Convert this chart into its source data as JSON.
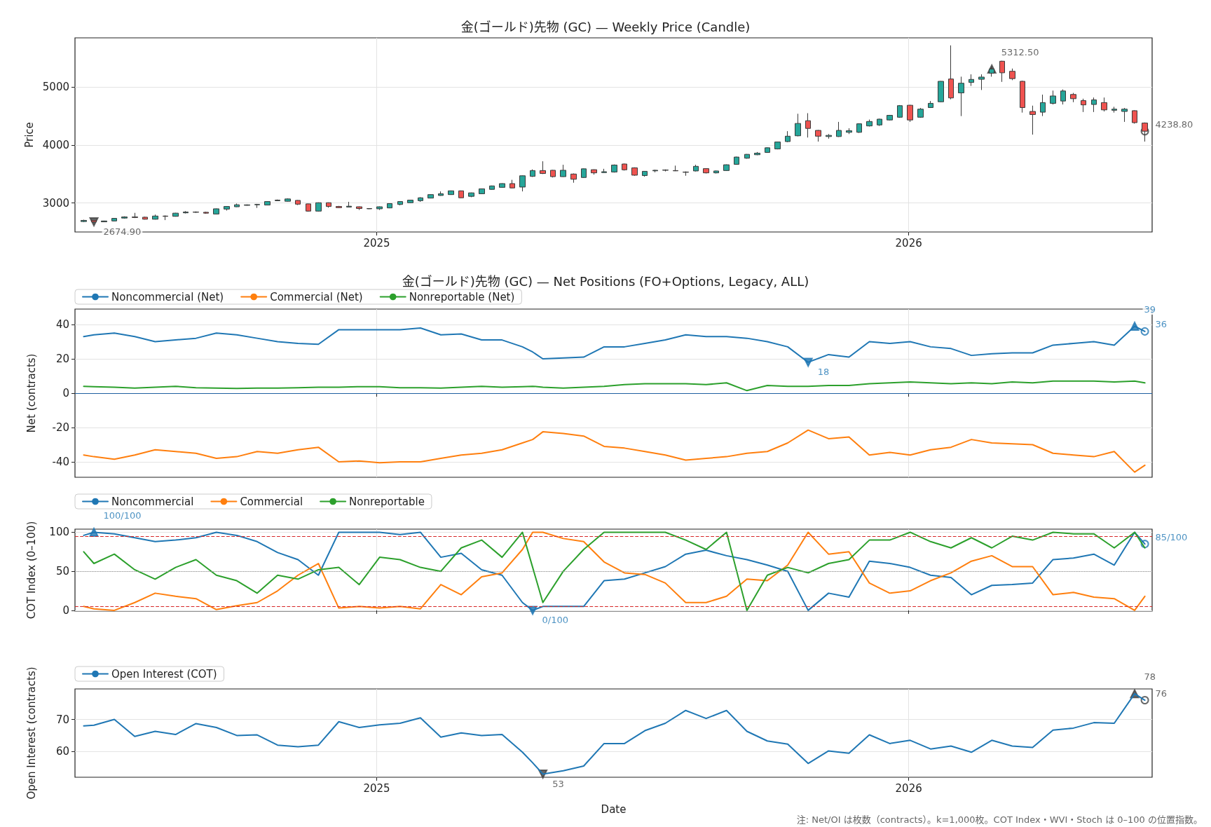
{
  "chart_data": [
    {
      "type": "candlestick",
      "title": "金(ゴールド)先物 (GC) — Weekly Price (Candle)",
      "ylabel": "Price",
      "x": [
        "2024-06-14",
        "2024-06-21",
        "2024-06-28",
        "2024-07-05",
        "2024-07-12",
        "2024-07-19",
        "2024-07-26",
        "2024-08-02",
        "2024-08-09",
        "2024-08-16",
        "2024-08-23",
        "2024-08-30",
        "2024-09-06",
        "2024-09-13",
        "2024-09-20",
        "2024-09-27",
        "2024-10-04",
        "2024-10-11",
        "2024-10-18",
        "2024-10-25",
        "2024-11-01",
        "2024-11-08",
        "2024-11-15",
        "2024-11-22",
        "2024-11-29",
        "2024-12-06",
        "2024-12-13",
        "2024-12-20",
        "2024-12-27",
        "2025-01-03",
        "2025-01-10",
        "2025-01-17",
        "2025-01-24",
        "2025-01-31",
        "2025-02-07",
        "2025-02-14",
        "2025-02-21",
        "2025-02-28",
        "2025-03-07",
        "2025-03-14",
        "2025-03-21",
        "2025-03-28",
        "2025-04-04",
        "2025-04-11",
        "2025-04-18",
        "2025-04-25",
        "2025-05-02",
        "2025-05-09",
        "2025-05-16",
        "2025-05-23",
        "2025-05-30",
        "2025-06-06",
        "2025-06-13",
        "2025-06-20",
        "2025-06-27",
        "2025-07-04",
        "2025-07-11",
        "2025-07-18",
        "2025-07-25",
        "2025-08-01",
        "2025-08-08",
        "2025-08-15",
        "2025-08-22",
        "2025-08-29",
        "2025-09-05",
        "2025-09-12",
        "2025-09-19",
        "2025-09-26",
        "2025-10-03",
        "2025-10-10",
        "2025-10-17",
        "2025-10-24",
        "2025-10-31",
        "2025-11-07",
        "2025-11-14",
        "2025-11-21",
        "2025-11-28",
        "2025-12-05",
        "2025-12-12",
        "2025-12-19",
        "2025-12-26",
        "2026-01-02",
        "2026-01-09",
        "2026-01-16",
        "2026-01-23",
        "2026-01-30",
        "2026-02-06",
        "2026-02-13",
        "2026-02-20",
        "2026-02-27",
        "2026-03-06",
        "2026-03-13",
        "2026-03-20",
        "2026-03-27",
        "2026-04-03",
        "2026-04-10",
        "2026-04-17",
        "2026-04-24",
        "2026-05-01",
        "2026-05-08",
        "2026-05-15",
        "2026-05-22",
        "2026-05-29",
        "2026-06-05",
        "2026-06-12"
      ],
      "ohlc": [
        [
          2680,
          2712,
          2670,
          2700
        ],
        [
          2700,
          2705,
          2665,
          2674.9
        ],
        [
          2675,
          2695,
          2670,
          2690
        ],
        [
          2690,
          2740,
          2685,
          2735
        ],
        [
          2740,
          2770,
          2730,
          2760
        ],
        [
          2760,
          2830,
          2740,
          2750
        ],
        [
          2755,
          2765,
          2715,
          2720
        ],
        [
          2720,
          2800,
          2715,
          2775
        ],
        [
          2775,
          2785,
          2705,
          2770
        ],
        [
          2770,
          2830,
          2765,
          2825
        ],
        [
          2830,
          2860,
          2820,
          2845
        ],
        [
          2845,
          2855,
          2830,
          2840
        ],
        [
          2840,
          2850,
          2815,
          2825
        ],
        [
          2810,
          2905,
          2805,
          2900
        ],
        [
          2895,
          2945,
          2870,
          2940
        ],
        [
          2935,
          2990,
          2930,
          2970
        ],
        [
          2960,
          2975,
          2955,
          2968
        ],
        [
          2970,
          2985,
          2915,
          2975
        ],
        [
          2965,
          3030,
          2960,
          3025
        ],
        [
          3040,
          3060,
          3035,
          3050
        ],
        [
          3030,
          3080,
          3025,
          3070
        ],
        [
          3045,
          3050,
          2965,
          2980
        ],
        [
          2985,
          2990,
          2850,
          2860
        ],
        [
          2860,
          3010,
          2855,
          3005
        ],
        [
          3005,
          3010,
          2920,
          2940
        ],
        [
          2940,
          2950,
          2915,
          2920
        ],
        [
          2930,
          3020,
          2925,
          2945
        ],
        [
          2935,
          2940,
          2880,
          2905
        ],
        [
          2905,
          2910,
          2895,
          2900
        ],
        [
          2900,
          2940,
          2880,
          2935
        ],
        [
          2915,
          2995,
          2910,
          2990
        ],
        [
          2975,
          3030,
          2960,
          3025
        ],
        [
          3005,
          3055,
          3000,
          3050
        ],
        [
          3040,
          3100,
          3020,
          3090
        ],
        [
          3085,
          3150,
          3080,
          3145
        ],
        [
          3130,
          3200,
          3125,
          3160
        ],
        [
          3145,
          3215,
          3140,
          3210
        ],
        [
          3210,
          3215,
          3085,
          3090
        ],
        [
          3115,
          3180,
          3100,
          3175
        ],
        [
          3160,
          3250,
          3155,
          3245
        ],
        [
          3235,
          3300,
          3230,
          3295
        ],
        [
          3270,
          3340,
          3265,
          3335
        ],
        [
          3335,
          3400,
          3255,
          3260
        ],
        [
          3275,
          3475,
          3200,
          3470
        ],
        [
          3460,
          3580,
          3450,
          3560
        ],
        [
          3560,
          3720,
          3500,
          3510
        ],
        [
          3565,
          3570,
          3440,
          3455
        ],
        [
          3455,
          3660,
          3450,
          3565
        ],
        [
          3500,
          3510,
          3350,
          3410
        ],
        [
          3440,
          3595,
          3435,
          3590
        ],
        [
          3575,
          3580,
          3490,
          3520
        ],
        [
          3525,
          3590,
          3520,
          3540
        ],
        [
          3535,
          3665,
          3525,
          3655
        ],
        [
          3673,
          3680,
          3560,
          3573
        ],
        [
          3607,
          3615,
          3470,
          3480
        ],
        [
          3473,
          3550,
          3455,
          3547
        ],
        [
          3555,
          3575,
          3530,
          3565
        ],
        [
          3565,
          3580,
          3545,
          3570
        ],
        [
          3560,
          3645,
          3550,
          3555
        ],
        [
          3535,
          3545,
          3470,
          3530
        ],
        [
          3553,
          3660,
          3545,
          3633
        ],
        [
          3593,
          3600,
          3510,
          3520
        ],
        [
          3520,
          3560,
          3510,
          3553
        ],
        [
          3560,
          3665,
          3555,
          3660
        ],
        [
          3667,
          3800,
          3660,
          3793
        ],
        [
          3773,
          3845,
          3765,
          3840
        ],
        [
          3833,
          3880,
          3825,
          3860
        ],
        [
          3873,
          3960,
          3865,
          3953
        ],
        [
          3933,
          4060,
          3925,
          4053
        ],
        [
          4060,
          4240,
          4050,
          4153
        ],
        [
          4160,
          4540,
          4150,
          4373
        ],
        [
          4420,
          4550,
          4130,
          4287
        ],
        [
          4253,
          4260,
          4060,
          4153
        ],
        [
          4147,
          4190,
          4110,
          4167
        ],
        [
          4147,
          4400,
          4140,
          4253
        ],
        [
          4220,
          4290,
          4190,
          4247
        ],
        [
          4220,
          4375,
          4210,
          4367
        ],
        [
          4330,
          4440,
          4320,
          4407
        ],
        [
          4347,
          4455,
          4330,
          4447
        ],
        [
          4433,
          4520,
          4425,
          4513
        ],
        [
          4480,
          4690,
          4470,
          4680
        ],
        [
          4687,
          4695,
          4400,
          4433
        ],
        [
          4480,
          4640,
          4470,
          4620
        ],
        [
          4647,
          4760,
          4640,
          4720
        ],
        [
          4747,
          5105,
          4740,
          5100
        ],
        [
          5140,
          5720,
          4790,
          4813
        ],
        [
          4900,
          5180,
          4500,
          5067
        ],
        [
          5080,
          5220,
          5020,
          5133
        ],
        [
          5135,
          5220,
          4950,
          5173
        ],
        [
          5240,
          5345,
          5180,
          5312.5
        ],
        [
          5447,
          5455,
          5090,
          5247
        ],
        [
          5273,
          5320,
          5120,
          5147
        ],
        [
          5100,
          5110,
          4560,
          4647
        ],
        [
          4580,
          4680,
          4180,
          4527
        ],
        [
          4567,
          4870,
          4500,
          4733
        ],
        [
          4720,
          4940,
          4700,
          4847
        ],
        [
          4760,
          4960,
          4700,
          4933
        ],
        [
          4873,
          4900,
          4740,
          4800
        ],
        [
          4767,
          4800,
          4570,
          4693
        ],
        [
          4700,
          4820,
          4570,
          4780
        ],
        [
          4733,
          4820,
          4580,
          4607
        ],
        [
          4600,
          4660,
          4560,
          4620
        ],
        [
          4580,
          4640,
          4400,
          4620
        ],
        [
          4593,
          4600,
          4370,
          4387
        ],
        [
          4380,
          4390,
          4060,
          4238.8
        ]
      ],
      "xlim": [
        "2024-06-08",
        "2026-06-17"
      ],
      "ylim": [
        2500,
        5850
      ],
      "xticks": [
        {
          "value": "2025-01-01",
          "label": "2025"
        },
        {
          "value": "2026-01-01",
          "label": "2026"
        }
      ],
      "yticks": [
        3000,
        4000,
        5000
      ],
      "grid": true,
      "annotations": [
        {
          "text": "2674.90",
          "x": "2024-06-21",
          "y": 2674.9
        },
        {
          "text": "5312.50",
          "x": "2026-02-27",
          "y": 5312.5
        },
        {
          "text": "4238.80",
          "x": "2026-06-12",
          "y": 4238.8
        }
      ]
    },
    {
      "type": "line",
      "title": "金(ゴールド)先物 (GC) — Net Positions (FO+Options, Legacy, ALL)",
      "ylabel": "Net (contracts)",
      "x": [
        "2024-06-14",
        "2024-06-21",
        "2024-07-05",
        "2024-07-19",
        "2024-08-02",
        "2024-08-16",
        "2024-08-30",
        "2024-09-13",
        "2024-09-27",
        "2024-10-11",
        "2024-10-25",
        "2024-11-08",
        "2024-11-22",
        "2024-12-06",
        "2024-12-20",
        "2025-01-03",
        "2025-01-17",
        "2025-01-31",
        "2025-02-14",
        "2025-02-28",
        "2025-03-14",
        "2025-03-28",
        "2025-04-11",
        "2025-04-18",
        "2025-04-25",
        "2025-05-09",
        "2025-05-23",
        "2025-06-06",
        "2025-06-20",
        "2025-07-04",
        "2025-07-18",
        "2025-08-01",
        "2025-08-15",
        "2025-08-29",
        "2025-09-12",
        "2025-09-26",
        "2025-10-10",
        "2025-10-24",
        "2025-11-07",
        "2025-11-21",
        "2025-12-05",
        "2025-12-19",
        "2026-01-02",
        "2026-01-16",
        "2026-01-30",
        "2026-02-13",
        "2026-02-27",
        "2026-03-13",
        "2026-03-27",
        "2026-04-10",
        "2026-04-24",
        "2026-05-08",
        "2026-05-22",
        "2026-06-05",
        "2026-06-12"
      ],
      "series": [
        {
          "name": "Noncommercial (Net)",
          "color": "#1f77b4",
          "values": [
            33,
            34,
            35,
            33,
            30,
            31,
            32,
            35,
            34,
            32,
            30,
            29,
            28.5,
            37,
            37,
            37,
            37,
            38,
            34,
            34.5,
            31,
            31,
            27,
            24,
            20,
            20.5,
            21,
            27,
            27,
            29,
            31,
            34,
            33,
            33,
            32,
            30,
            27,
            18,
            22.5,
            21,
            30,
            29,
            30,
            27,
            26,
            22,
            23,
            23.5,
            23.5,
            28,
            29,
            30,
            28,
            39,
            36
          ]
        },
        {
          "name": "Commercial (Net)",
          "color": "#ff7f0e",
          "values": [
            -36,
            -37,
            -38.5,
            -36,
            -33,
            -34,
            -35,
            -38,
            -37,
            -34,
            -35,
            -33,
            -31.5,
            -40,
            -39.5,
            -40.5,
            -40,
            -40,
            -38,
            -36,
            -35,
            -33,
            -29,
            -27,
            -22.5,
            -23.5,
            -25,
            -31,
            -32,
            -34,
            -36,
            -39,
            -38,
            -37,
            -35,
            -34,
            -29,
            -21.5,
            -26.5,
            -25.5,
            -36,
            -34.5,
            -36,
            -33,
            -31.5,
            -27,
            -29,
            -29.5,
            -30,
            -35,
            -36,
            -37,
            -34,
            -46,
            -42
          ]
        },
        {
          "name": "Nonreportable (Net)",
          "color": "#2ca02c",
          "values": [
            4,
            3.8,
            3.5,
            3,
            3.5,
            4,
            3.2,
            3,
            2.8,
            3,
            3,
            3.2,
            3.5,
            3.5,
            3.8,
            3.8,
            3.2,
            3.2,
            3,
            3.5,
            4,
            3.5,
            3.8,
            4,
            3.5,
            3,
            3.5,
            4,
            5,
            5.5,
            5.5,
            5.5,
            5,
            6,
            1.5,
            4.5,
            4,
            4,
            4.5,
            4.5,
            5.5,
            6,
            6.5,
            6,
            5.5,
            6,
            5.5,
            6.5,
            6,
            7,
            7,
            7,
            6.5,
            7,
            6
          ]
        }
      ],
      "xlim": [
        "2024-06-08",
        "2026-06-17"
      ],
      "ylim": [
        -49,
        49
      ],
      "xticks": [
        {
          "value": "2025-01-01",
          "label": null
        },
        {
          "value": "2026-01-01",
          "label": null
        }
      ],
      "yticks": [
        -40,
        -20,
        0,
        20,
        40
      ],
      "grid": true,
      "legend": "top left",
      "tick_labels": "y",
      "ref_lines": [
        {
          "axis": "y",
          "value": 0,
          "color": "#1f5fa0"
        }
      ],
      "annotations": [
        {
          "text": "18",
          "x": "2025-10-24",
          "y": 18
        },
        {
          "text": "39",
          "x": "2026-06-05",
          "y": 39
        },
        {
          "text": "36",
          "x": "2026-06-12",
          "y": 36
        }
      ]
    },
    {
      "type": "line",
      "ylabel": "COT Index (0–100)",
      "x": [
        "2024-06-14",
        "2024-06-21",
        "2024-07-05",
        "2024-07-19",
        "2024-08-02",
        "2024-08-16",
        "2024-08-30",
        "2024-09-13",
        "2024-09-27",
        "2024-10-11",
        "2024-10-25",
        "2024-11-08",
        "2024-11-22",
        "2024-12-06",
        "2024-12-20",
        "2025-01-03",
        "2025-01-17",
        "2025-01-31",
        "2025-02-14",
        "2025-02-28",
        "2025-03-14",
        "2025-03-28",
        "2025-04-11",
        "2025-04-18",
        "2025-04-25",
        "2025-05-09",
        "2025-05-23",
        "2025-06-06",
        "2025-06-20",
        "2025-07-04",
        "2025-07-18",
        "2025-08-01",
        "2025-08-15",
        "2025-08-29",
        "2025-09-12",
        "2025-09-26",
        "2025-10-10",
        "2025-10-24",
        "2025-11-07",
        "2025-11-21",
        "2025-12-05",
        "2025-12-19",
        "2026-01-02",
        "2026-01-16",
        "2026-01-30",
        "2026-02-13",
        "2026-02-27",
        "2026-03-13",
        "2026-03-27",
        "2026-04-10",
        "2026-04-24",
        "2026-05-08",
        "2026-05-22",
        "2026-06-05",
        "2026-06-12"
      ],
      "series": [
        {
          "name": "Noncommercial",
          "color": "#1f77b4",
          "values": [
            96,
            100,
            98,
            93,
            88,
            90,
            93,
            100,
            96,
            88,
            74,
            65,
            45,
            100,
            100,
            100,
            97,
            100,
            68,
            73,
            52,
            45,
            10,
            0,
            5,
            5,
            5,
            38,
            40,
            48,
            56,
            72,
            77,
            70,
            65,
            58,
            50,
            0,
            22,
            17,
            63,
            60,
            55,
            45,
            42,
            20,
            32,
            33,
            35,
            65,
            67,
            72,
            58,
            100,
            85
          ]
        },
        {
          "name": "Commercial",
          "color": "#ff7f0e",
          "values": [
            5,
            2,
            0,
            10,
            22,
            18,
            15,
            1,
            6,
            10,
            25,
            45,
            60,
            3,
            5,
            3,
            5,
            2,
            33,
            20,
            43,
            48,
            78,
            100,
            100,
            92,
            88,
            62,
            48,
            46,
            35,
            10,
            10,
            18,
            40,
            38,
            58,
            100,
            72,
            75,
            35,
            22,
            25,
            38,
            48,
            63,
            70,
            56,
            56,
            20,
            23,
            17,
            15,
            0,
            18
          ]
        },
        {
          "name": "Nonreportable",
          "color": "#2ca02c",
          "values": [
            75,
            60,
            72,
            52,
            40,
            55,
            65,
            45,
            38,
            22,
            45,
            40,
            52,
            55,
            33,
            68,
            65,
            55,
            50,
            80,
            90,
            68,
            100,
            55,
            10,
            50,
            78,
            100,
            100,
            100,
            100,
            90,
            78,
            100,
            0,
            45,
            55,
            48,
            60,
            65,
            90,
            90,
            100,
            88,
            80,
            93,
            80,
            95,
            90,
            100,
            98,
            98,
            80,
            100,
            80
          ]
        }
      ],
      "xlim": [
        "2024-06-08",
        "2026-06-17"
      ],
      "ylim": [
        -1,
        104
      ],
      "xticks": [
        {
          "value": "2025-01-01",
          "label": null
        },
        {
          "value": "2026-01-01",
          "label": null
        }
      ],
      "yticks": [
        0,
        50,
        100
      ],
      "grid": true,
      "legend": "top left",
      "tick_labels": "y",
      "ref_lines": [
        {
          "axis": "y",
          "value": 95,
          "color": "#d62728",
          "line_style": "dashed"
        },
        {
          "axis": "y",
          "value": 5,
          "color": "#d62728",
          "line_style": "dashed"
        },
        {
          "axis": "y",
          "value": 50,
          "color": "#999999",
          "line_style": "dotted"
        }
      ],
      "annotations": [
        {
          "text": "100/100",
          "x": "2024-06-21",
          "y": 100
        },
        {
          "text": "0/100",
          "x": "2025-04-18",
          "y": 0
        },
        {
          "text": "85/100",
          "x": "2026-06-12",
          "y": 85
        }
      ]
    },
    {
      "type": "line",
      "ylabel": "Open Interest (contracts)",
      "xlabel": "Date",
      "x": [
        "2024-06-14",
        "2024-06-21",
        "2024-07-05",
        "2024-07-19",
        "2024-08-02",
        "2024-08-16",
        "2024-08-30",
        "2024-09-13",
        "2024-09-27",
        "2024-10-11",
        "2024-10-25",
        "2024-11-08",
        "2024-11-22",
        "2024-12-06",
        "2024-12-20",
        "2025-01-03",
        "2025-01-17",
        "2025-01-31",
        "2025-02-14",
        "2025-02-28",
        "2025-03-14",
        "2025-03-28",
        "2025-04-11",
        "2025-04-18",
        "2025-04-25",
        "2025-05-09",
        "2025-05-23",
        "2025-06-06",
        "2025-06-20",
        "2025-07-04",
        "2025-07-18",
        "2025-08-01",
        "2025-08-15",
        "2025-08-29",
        "2025-09-12",
        "2025-09-26",
        "2025-10-10",
        "2025-10-24",
        "2025-11-07",
        "2025-11-21",
        "2025-12-05",
        "2025-12-19",
        "2026-01-02",
        "2026-01-16",
        "2026-01-30",
        "2026-02-13",
        "2026-02-27",
        "2026-03-13",
        "2026-03-27",
        "2026-04-10",
        "2026-04-24",
        "2026-05-08",
        "2026-05-22",
        "2026-06-05",
        "2026-06-12"
      ],
      "series": [
        {
          "name": "Open Interest (COT)",
          "color": "#1f77b4",
          "values": [
            68,
            68.2,
            70,
            64.7,
            66.3,
            65.3,
            68.7,
            67.5,
            65,
            65.2,
            62,
            61.5,
            62,
            69.3,
            67.5,
            68.3,
            68.8,
            70.5,
            64.5,
            65.8,
            65,
            65.3,
            59.8,
            56.5,
            53,
            54,
            55.5,
            62.5,
            62.5,
            66.5,
            68.8,
            72.8,
            70.3,
            72.8,
            66.3,
            63.3,
            62.3,
            56.3,
            60.2,
            59.5,
            65.2,
            62.5,
            63.5,
            60.8,
            61.7,
            59.8,
            63.5,
            61.7,
            61.3,
            66.7,
            67.3,
            69,
            68.8,
            78,
            76
          ]
        }
      ],
      "xlim": [
        "2024-06-08",
        "2026-06-17"
      ],
      "ylim": [
        52,
        79.5
      ],
      "xticks": [
        {
          "value": "2025-01-01",
          "label": "2025"
        },
        {
          "value": "2026-01-01",
          "label": "2026"
        }
      ],
      "yticks": [
        60,
        70
      ],
      "grid": true,
      "legend": "top left",
      "annotations": [
        {
          "text": "53",
          "x": "2025-04-25",
          "y": 53
        },
        {
          "text": "78",
          "x": "2026-06-05",
          "y": 78
        },
        {
          "text": "76",
          "x": "2026-06-12",
          "y": 76
        },
        "注: Net/OI は枚数（contracts）。k=1,000枚。COT Index・WVI・Stoch は 0–100 の位置指数。"
      ]
    }
  ]
}
